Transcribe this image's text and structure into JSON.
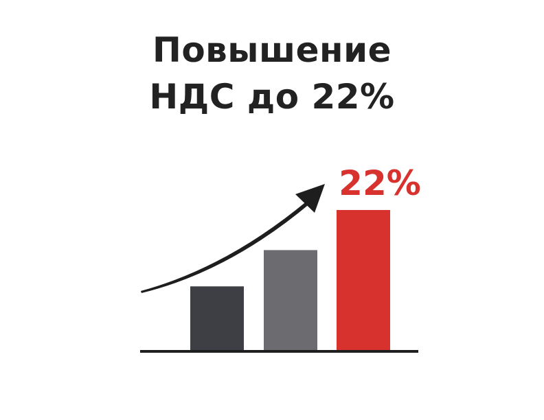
{
  "title": {
    "line1": "Повышение",
    "line2": "НДС до 22%"
  },
  "chart_data": {
    "type": "bar",
    "title": "Повышение НДС до 22%",
    "categories": [
      "",
      "",
      ""
    ],
    "values": [
      10,
      15.7,
      22
    ],
    "ylim": [
      0,
      22
    ],
    "grid": false,
    "annotations": [
      {
        "bar": 2,
        "text": "22%"
      }
    ],
    "trend_arrow": "rising",
    "colors": {
      "bars": [
        "#3d3f44",
        "#6b6b70",
        "#d7322e"
      ],
      "label": "#d7322e",
      "arrow": "#1e1e1e",
      "baseline": "#1e1e1e"
    }
  }
}
